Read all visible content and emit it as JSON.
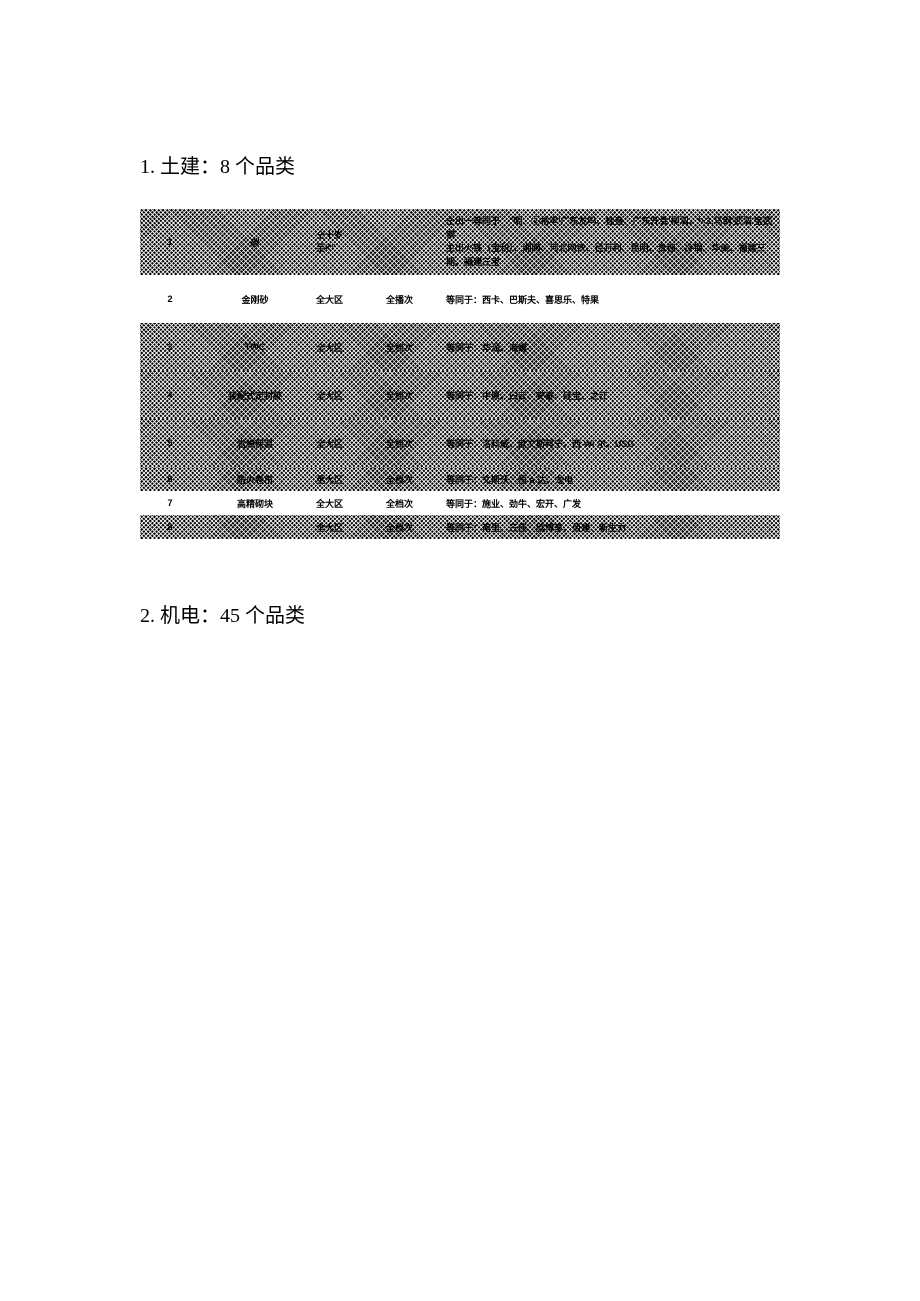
{
  "section1": {
    "heading": "1. 土建：8 个品类",
    "columns": [
      "idx",
      "name",
      "region",
      "grade",
      "desc"
    ],
    "rows": [
      {
        "idx": "1",
        "name": "碳",
        "region": "仝十岁\n至K\"",
        "grade": "",
        "desc": "仝出一等同于：\"明、②裕丰'广东友吗、桂叁、广东开会'柳泅，*«3,马钢'武泅'宝武钢\n主出火铁（宝利）、湘网、河北网铁、径万利、昆明、贵诬、冷钢、华美、福建三期、福建三宝",
        "style": "hatched",
        "height": "first"
      },
      {
        "idx": "2",
        "name": "金刚砂",
        "region": "全大区",
        "grade": "全播次",
        "desc": "等同于：西卡、巴斯夫、喜思乐、特果",
        "style": "plain",
        "height": "tall"
      },
      {
        "idx": "3",
        "name": "TWC",
        "region": "全大区",
        "grade": "全档次",
        "desc": "等同于：华润、海螺",
        "style": "hatched",
        "height": "tall"
      },
      {
        "idx": "4",
        "name": "装配式定封胶",
        "region": "全大区",
        "grade": "全档次",
        "desc": "等同于：中原、臼云、安泰、硅宝、之江",
        "style": "hatched",
        "height": "tall"
      },
      {
        "idx": "5",
        "name": "岩棉保温",
        "region": "全大区",
        "grade": "全档次",
        "desc": "等同于：洛科威、欧文斯科宁、西 Wi 尔、USG",
        "style": "hatched",
        "height": "tall"
      },
      {
        "idx": "6",
        "name": "防火卷帘",
        "region": "至大区",
        "grade": "全档次",
        "desc": "等同于：文斯沃、恒 a 达、龙电",
        "style": "hatched",
        "height": "med"
      },
      {
        "idx": "7",
        "name": "高精砌块",
        "region": "全大区",
        "grade": "全档次",
        "desc": "等同于：施业、劲牛、宏开、广发",
        "style": "plain",
        "height": "med"
      },
      {
        "idx": "8",
        "name": "",
        "region": "全大区",
        "grade": "全档次",
        "desc": "等同于：南里、三佳、欣博享、佰建、新生力",
        "style": "hatched",
        "height": "med"
      }
    ]
  },
  "section2": {
    "heading": "2. 机电：45 个品类"
  }
}
